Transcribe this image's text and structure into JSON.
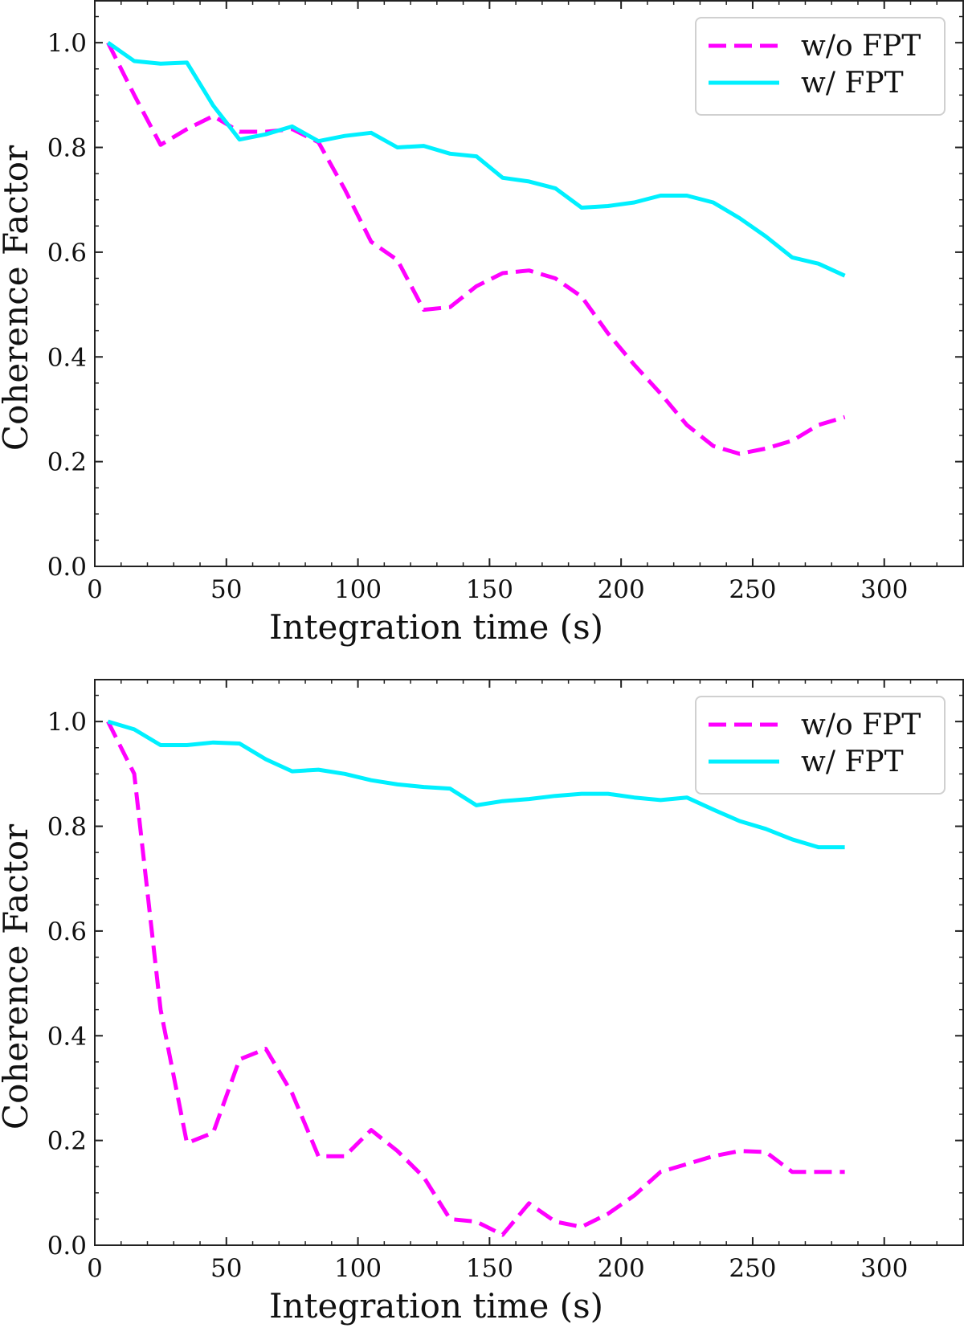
{
  "chart_data": [
    {
      "type": "line",
      "title": "",
      "xlabel": "Integration time (s)",
      "ylabel": "Coherence Factor",
      "xlim": [
        0,
        330
      ],
      "ylim": [
        0,
        1.08
      ],
      "xticks": [
        0,
        50,
        100,
        150,
        200,
        250,
        300
      ],
      "yticks": [
        0.0,
        0.2,
        0.4,
        0.6,
        0.8,
        1.0
      ],
      "xtick_labels": [
        "0",
        "50",
        "100",
        "150",
        "200",
        "250",
        "300"
      ],
      "ytick_labels": [
        "0.0",
        "0.2",
        "0.4",
        "0.6",
        "0.8",
        "1.0"
      ],
      "grid": false,
      "legend_position": "top-right",
      "x": [
        5,
        15,
        25,
        35,
        45,
        55,
        65,
        75,
        85,
        95,
        105,
        115,
        125,
        135,
        145,
        155,
        165,
        175,
        185,
        195,
        205,
        215,
        225,
        235,
        245,
        255,
        265,
        275,
        285
      ],
      "series": [
        {
          "name": "w/o FPT",
          "color": "#ff00ff",
          "style": "dashed",
          "values": [
            1.0,
            0.9,
            0.805,
            0.835,
            0.86,
            0.83,
            0.83,
            0.835,
            0.81,
            0.72,
            0.62,
            0.585,
            0.49,
            0.495,
            0.535,
            0.56,
            0.565,
            0.55,
            0.515,
            0.445,
            0.385,
            0.33,
            0.27,
            0.23,
            0.215,
            0.225,
            0.24,
            0.27,
            0.285
          ]
        },
        {
          "name": "w/ FPT",
          "color": "#00f0ff",
          "style": "solid",
          "values": [
            1.0,
            0.965,
            0.96,
            0.962,
            0.88,
            0.815,
            0.825,
            0.84,
            0.812,
            0.822,
            0.828,
            0.8,
            0.803,
            0.788,
            0.783,
            0.742,
            0.735,
            0.722,
            0.685,
            0.688,
            0.695,
            0.708,
            0.708,
            0.695,
            0.665,
            0.63,
            0.59,
            0.578,
            0.555
          ]
        }
      ]
    },
    {
      "type": "line",
      "title": "",
      "xlabel": "Integration time (s)",
      "ylabel": "Coherence Factor",
      "xlim": [
        0,
        330
      ],
      "ylim": [
        0,
        1.08
      ],
      "xticks": [
        0,
        50,
        100,
        150,
        200,
        250,
        300
      ],
      "yticks": [
        0.0,
        0.2,
        0.4,
        0.6,
        0.8,
        1.0
      ],
      "xtick_labels": [
        "0",
        "50",
        "100",
        "150",
        "200",
        "250",
        "300"
      ],
      "ytick_labels": [
        "0.0",
        "0.2",
        "0.4",
        "0.6",
        "0.8",
        "1.0"
      ],
      "grid": false,
      "legend_position": "top-right",
      "x": [
        5,
        15,
        25,
        35,
        45,
        55,
        65,
        75,
        85,
        95,
        105,
        115,
        125,
        135,
        145,
        155,
        165,
        175,
        185,
        195,
        205,
        215,
        225,
        235,
        245,
        255,
        265,
        275,
        285
      ],
      "series": [
        {
          "name": "w/o FPT",
          "color": "#ff00ff",
          "style": "dashed",
          "values": [
            1.0,
            0.9,
            0.45,
            0.195,
            0.215,
            0.355,
            0.375,
            0.29,
            0.17,
            0.17,
            0.22,
            0.18,
            0.13,
            0.05,
            0.045,
            0.02,
            0.08,
            0.045,
            0.035,
            0.06,
            0.095,
            0.14,
            0.155,
            0.17,
            0.18,
            0.178,
            0.14,
            0.14,
            0.14
          ]
        },
        {
          "name": "w/ FPT",
          "color": "#00f0ff",
          "style": "solid",
          "values": [
            1.0,
            0.985,
            0.955,
            0.955,
            0.96,
            0.958,
            0.928,
            0.905,
            0.908,
            0.9,
            0.888,
            0.88,
            0.875,
            0.872,
            0.84,
            0.848,
            0.852,
            0.858,
            0.862,
            0.862,
            0.855,
            0.85,
            0.855,
            0.832,
            0.81,
            0.795,
            0.775,
            0.76,
            0.76
          ]
        }
      ]
    }
  ]
}
